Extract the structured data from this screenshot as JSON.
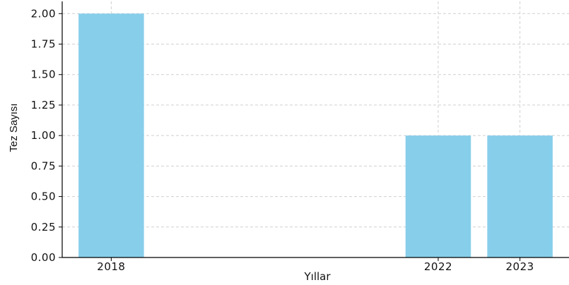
{
  "chart_data": {
    "type": "bar",
    "categories": [
      "2018",
      "2022",
      "2023"
    ],
    "x": [
      2018,
      2022,
      2023
    ],
    "values": [
      2,
      1,
      1
    ],
    "xlabel": "Yıllar",
    "ylabel": "Tez Sayısı",
    "ylim": [
      0,
      2.1
    ],
    "xlim": [
      2017.4,
      2023.6
    ],
    "yticks": [
      "0.00",
      "0.25",
      "0.50",
      "0.75",
      "1.00",
      "1.25",
      "1.50",
      "1.75",
      "2.00"
    ],
    "grid": true,
    "bar_color": "#87ceeb",
    "grid_color": "#d0d0d0"
  }
}
